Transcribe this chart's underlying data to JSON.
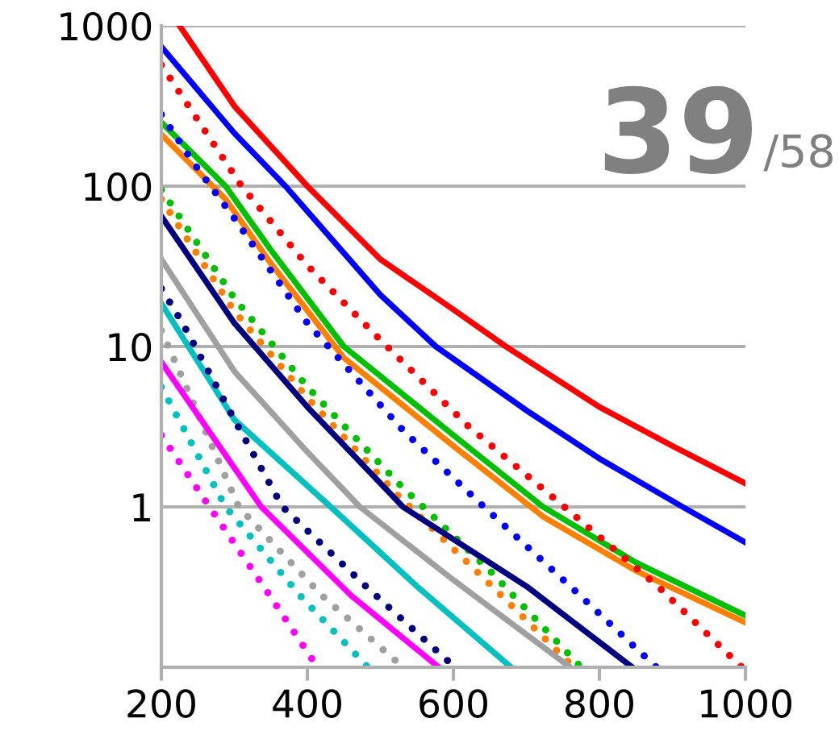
{
  "chart_data": {
    "type": "line",
    "log": "y",
    "xlim": [
      200,
      1000
    ],
    "ylim": [
      0.1,
      1000
    ],
    "xticks": [
      200,
      400,
      600,
      800,
      1000
    ],
    "yticks": [
      1,
      10,
      100,
      1000
    ],
    "grid": "y",
    "legend": false,
    "annotations": [
      "39",
      "/58"
    ],
    "series": [
      {
        "color": "#ff0000",
        "line_style": "solid",
        "x": [
          225,
          300,
          400,
          500,
          600,
          672,
          800,
          900,
          1000
        ],
        "values": [
          1000,
          316,
          100,
          35,
          17,
          10,
          4.2,
          2.4,
          1.4
        ]
      },
      {
        "color": "#0000ff",
        "line_style": "solid",
        "x": [
          200,
          300,
          370,
          500,
          576,
          700,
          800,
          914,
          1000
        ],
        "values": [
          740,
          214,
          100,
          21,
          10,
          4,
          2,
          1,
          0.6
        ]
      },
      {
        "color": "#00c000",
        "line_style": "solid",
        "x": [
          200,
          288,
          350,
          450,
          600,
          723,
          850,
          1000
        ],
        "values": [
          250,
          100,
          40,
          10,
          2.8,
          1,
          0.45,
          0.21
        ]
      },
      {
        "color": "#ff8000",
        "line_style": "solid",
        "x": [
          200,
          288,
          350,
          450,
          600,
          723,
          850,
          1000
        ],
        "values": [
          210,
          83,
          33,
          8.5,
          2.4,
          0.87,
          0.4,
          0.19
        ]
      },
      {
        "color": "#ff0000",
        "line_style": "dotted",
        "x": [
          200,
          310,
          400,
          500,
          620,
          752,
          880,
          995
        ],
        "values": [
          570,
          100,
          32,
          11,
          3.2,
          1,
          0.32,
          0.1
        ]
      },
      {
        "color": "#0000ff",
        "line_style": "dotted",
        "x": [
          200,
          244,
          300,
          400,
          531,
          642,
          760,
          878
        ],
        "values": [
          280,
          140,
          63,
          14,
          3,
          1,
          0.32,
          0.1
        ]
      },
      {
        "color": "#00c000",
        "line_style": "dotted",
        "x": [
          200,
          300,
          400,
          525,
          650,
          775
        ],
        "values": [
          95,
          20,
          5.6,
          1.4,
          0.4,
          0.1
        ]
      },
      {
        "color": "#ff8000",
        "line_style": "dotted",
        "x": [
          200,
          300,
          400,
          525,
          650,
          765
        ],
        "values": [
          83,
          16.6,
          4.8,
          1.17,
          0.33,
          0.1
        ]
      },
      {
        "color": "#000080",
        "line_style": "solid",
        "x": [
          200,
          300,
          400,
          531,
          700,
          845
        ],
        "values": [
          65,
          14,
          4.2,
          1,
          0.32,
          0.1
        ]
      },
      {
        "color": "#a0a0a0",
        "line_style": "solid",
        "x": [
          200,
          300,
          400,
          472,
          600,
          760
        ],
        "values": [
          35,
          7,
          2.2,
          1,
          0.35,
          0.1
        ]
      },
      {
        "color": "#00c0c0",
        "line_style": "solid",
        "x": [
          200,
          300,
          432,
          550,
          679
        ],
        "values": [
          18.6,
          3.5,
          1,
          0.32,
          0.1
        ]
      },
      {
        "color": "#000080",
        "line_style": "dotted",
        "x": [
          200,
          229,
          300,
          366,
          480,
          602
        ],
        "values": [
          23,
          14,
          3.5,
          1,
          0.32,
          0.1
        ]
      },
      {
        "color": "#a0a0a0",
        "line_style": "dotted",
        "x": [
          200,
          306,
          420,
          531
        ],
        "values": [
          12.6,
          1,
          0.28,
          0.1
        ]
      },
      {
        "color": "#ff00ff",
        "line_style": "solid",
        "x": [
          200,
          337,
          460,
          580
        ],
        "values": [
          8,
          1,
          0.28,
          0.1
        ]
      },
      {
        "color": "#00c0c0",
        "line_style": "dotted",
        "x": [
          200,
          288,
          390,
          483
        ],
        "values": [
          5.6,
          1,
          0.28,
          0.1
        ]
      },
      {
        "color": "#ff00ff",
        "line_style": "dotted",
        "x": [
          200,
          266,
          340,
          414
        ],
        "values": [
          2.8,
          1,
          0.32,
          0.1
        ]
      }
    ]
  }
}
